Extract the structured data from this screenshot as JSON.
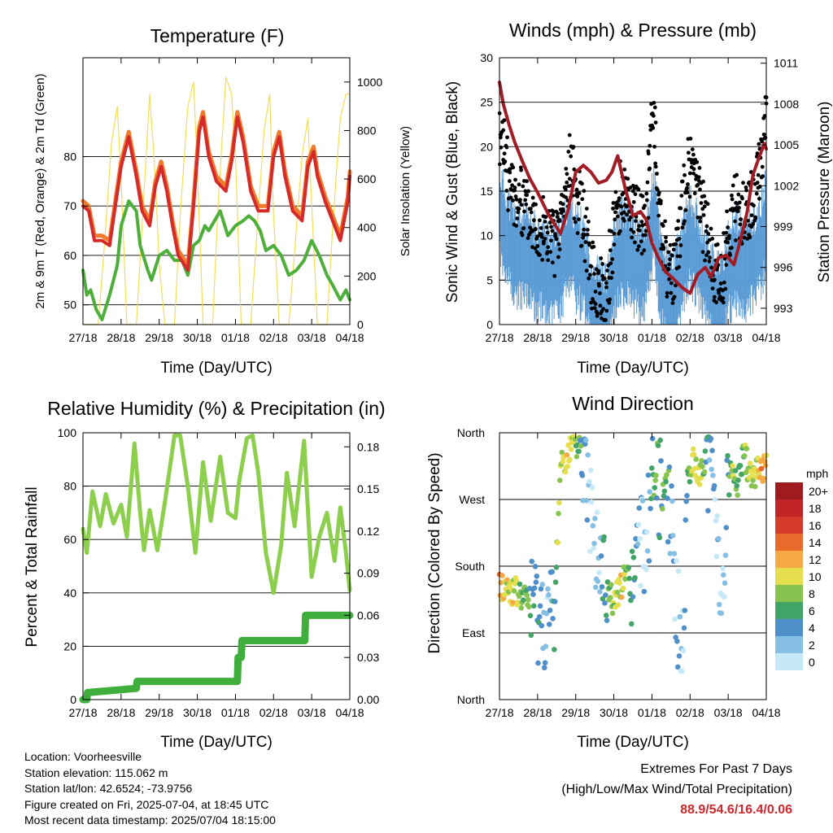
{
  "colors": {
    "t2m": "#f07a2b",
    "t9m": "#d42a2a",
    "td": "#4daf3a",
    "solar": "#f5dc55",
    "gust": "#000000",
    "wind": "#5b9bd5",
    "pressure": "#a21c25",
    "rh": "#8ccf4d",
    "precip": "#3fae3c",
    "extremes": "#c9282d"
  },
  "x_ticks": [
    "27/18",
    "28/18",
    "29/18",
    "30/18",
    "01/18",
    "02/18",
    "03/18",
    "04/18"
  ],
  "chart_data": [
    {
      "type": "line",
      "title": "Temperature (F)",
      "xlabel": "Time (Day/UTC)",
      "ylabel": "2m & 9m T (Red, Orange) & 2m Td (Green)",
      "ylabel_right": "Solar Insolation (Yellow)",
      "ylim": [
        46,
        100
      ],
      "ylim_right": [
        0,
        1100
      ],
      "yticks": [
        50,
        60,
        70,
        80
      ],
      "yticks_right": [
        0,
        200,
        400,
        600,
        800,
        1000
      ],
      "grid": true,
      "series": [
        {
          "key": "t9m",
          "x": [
            0,
            0.15,
            0.3,
            0.5,
            0.7,
            0.85,
            1.0,
            1.2,
            1.4,
            1.55,
            1.75,
            1.9,
            2.05,
            2.2,
            2.35,
            2.5,
            2.75,
            2.9,
            3.05,
            3.15,
            3.3,
            3.5,
            3.75,
            3.9,
            4.05,
            4.2,
            4.4,
            4.6,
            4.85,
            5.0,
            5.15,
            5.3,
            5.5,
            5.75,
            5.9,
            6.05,
            6.15,
            6.35,
            6.55,
            6.75,
            6.95,
            7.0
          ],
          "y": [
            70,
            69,
            63,
            63,
            62,
            70,
            78,
            84,
            76,
            69,
            66,
            74,
            78,
            73,
            66,
            60,
            57,
            70,
            85,
            88,
            80,
            75,
            73,
            79,
            88,
            83,
            73,
            69,
            69,
            80,
            84,
            76,
            69,
            67,
            78,
            81,
            76,
            71,
            67,
            63,
            71,
            76
          ]
        },
        {
          "key": "t2m",
          "x": [
            0,
            0.15,
            0.3,
            0.5,
            0.7,
            0.85,
            1.0,
            1.2,
            1.4,
            1.55,
            1.75,
            1.9,
            2.05,
            2.2,
            2.35,
            2.5,
            2.75,
            2.9,
            3.05,
            3.15,
            3.3,
            3.5,
            3.75,
            3.9,
            4.05,
            4.2,
            4.4,
            4.6,
            4.85,
            5.0,
            5.15,
            5.3,
            5.5,
            5.75,
            5.9,
            6.05,
            6.15,
            6.35,
            6.55,
            6.75,
            6.95,
            7.0
          ],
          "y": [
            71,
            70,
            64,
            64,
            63,
            71,
            79,
            85,
            77,
            70,
            67,
            75,
            79,
            74,
            67,
            61,
            58,
            71,
            86,
            89,
            81,
            76,
            74,
            80,
            89,
            84,
            74,
            70,
            70,
            81,
            85,
            77,
            70,
            68,
            79,
            82,
            77,
            72,
            68,
            64,
            72,
            77
          ]
        },
        {
          "key": "td",
          "x": [
            0,
            0.1,
            0.2,
            0.35,
            0.5,
            0.7,
            0.9,
            1.0,
            1.2,
            1.4,
            1.5,
            1.7,
            1.8,
            2.0,
            2.2,
            2.4,
            2.6,
            2.75,
            2.9,
            3.05,
            3.2,
            3.3,
            3.45,
            3.6,
            3.8,
            4.0,
            4.2,
            4.35,
            4.5,
            4.65,
            4.8,
            5.0,
            5.2,
            5.4,
            5.6,
            5.8,
            6.0,
            6.2,
            6.4,
            6.55,
            6.75,
            6.9,
            7.0
          ],
          "y": [
            57,
            52,
            53,
            49,
            47,
            52,
            58,
            66,
            71,
            69,
            62,
            57,
            55,
            60,
            61,
            59,
            59,
            56,
            62,
            63,
            66,
            65,
            67,
            69,
            64,
            66,
            67,
            68,
            67,
            65,
            61,
            62,
            60,
            56,
            57,
            59,
            63,
            60,
            56,
            54,
            51,
            53,
            51
          ]
        },
        {
          "key": "solar",
          "axis": "right",
          "x": [
            0,
            0.4,
            0.55,
            0.75,
            0.9,
            1.0,
            1.15,
            1.35,
            1.4,
            1.55,
            1.75,
            1.9,
            2.0,
            2.15,
            2.35,
            2.4,
            2.55,
            2.75,
            2.9,
            3.0,
            3.15,
            3.35,
            3.4,
            3.55,
            3.75,
            3.9,
            4.0,
            4.15,
            4.35,
            4.4,
            4.55,
            4.75,
            4.9,
            5.0,
            5.15,
            5.35,
            5.4,
            5.55,
            5.75,
            5.9,
            6.0,
            6.15,
            6.35,
            6.4,
            6.55,
            6.75,
            6.9,
            7.0
          ],
          "y": [
            0,
            0,
            300,
            750,
            900,
            600,
            0,
            0,
            0,
            400,
            950,
            600,
            250,
            0,
            0,
            0,
            450,
            900,
            1000,
            650,
            0,
            0,
            0,
            500,
            1020,
            950,
            700,
            0,
            0,
            0,
            350,
            800,
            950,
            450,
            0,
            0,
            0,
            300,
            700,
            850,
            500,
            0,
            0,
            0,
            400,
            850,
            950,
            950
          ]
        }
      ]
    },
    {
      "type": "scatter",
      "title": "Winds (mph) & Pressure (mb)",
      "xlabel": "Time (Day/UTC)",
      "ylabel": "Sonic Wind & Gust (Blue, Black)",
      "ylabel_right": "Station Pressure (Maroon)",
      "ylim": [
        0,
        30
      ],
      "ylim_right": [
        991.8,
        1011.4
      ],
      "yticks": [
        0,
        5,
        10,
        15,
        20,
        25,
        30
      ],
      "yticks_right": [
        993,
        996,
        999,
        1002,
        1005,
        1008,
        1011
      ],
      "grid": true,
      "series": [
        {
          "key": "gust",
          "x": [
            0,
            0.15,
            0.3,
            0.5,
            0.7,
            0.9,
            1.1,
            1.3,
            1.5,
            1.7,
            1.85,
            2.0,
            2.2,
            2.4,
            2.6,
            2.8,
            3.0,
            3.2,
            3.4,
            3.6,
            3.8,
            3.95,
            4.05,
            4.2,
            4.4,
            4.6,
            4.8,
            5.0,
            5.2,
            5.4,
            5.6,
            5.8,
            6.0,
            6.15,
            6.3,
            6.5,
            6.7,
            6.85,
            6.95,
            7.0
          ],
          "y": [
            21,
            19,
            15,
            14,
            13,
            12,
            11,
            10,
            9,
            14,
            18,
            15,
            12,
            6,
            4,
            3,
            11,
            15,
            14,
            12,
            10,
            19,
            24,
            12,
            6,
            5,
            14,
            18,
            15,
            11,
            7,
            4,
            10,
            14,
            12,
            13,
            15,
            17,
            22,
            23
          ]
        },
        {
          "key": "wind",
          "x": [
            0,
            0.15,
            0.3,
            0.5,
            0.7,
            0.9,
            1.1,
            1.3,
            1.5,
            1.7,
            1.85,
            2.0,
            2.2,
            2.4,
            2.6,
            2.8,
            3.0,
            3.2,
            3.4,
            3.6,
            3.8,
            3.95,
            4.05,
            4.2,
            4.4,
            4.6,
            4.8,
            5.0,
            5.2,
            5.4,
            5.6,
            5.8,
            6.0,
            6.15,
            6.3,
            6.5,
            6.7,
            6.85,
            6.95,
            7.0
          ],
          "y": [
            13,
            11,
            9,
            8,
            8,
            7,
            7,
            6,
            6,
            8,
            10,
            8,
            7,
            3,
            2,
            1,
            6,
            9,
            8,
            7,
            6,
            10,
            13,
            7,
            3,
            3,
            7,
            10,
            8,
            6,
            4,
            2,
            6,
            8,
            7,
            7,
            8,
            9,
            11,
            12
          ]
        },
        {
          "key": "pressure",
          "type": "line",
          "axis": "right",
          "x": [
            0,
            0.1,
            0.25,
            0.4,
            0.6,
            0.8,
            1.0,
            1.3,
            1.6,
            1.8,
            2.0,
            2.2,
            2.4,
            2.6,
            2.8,
            2.95,
            3.1,
            3.3,
            3.5,
            3.7,
            3.85,
            4.0,
            4.15,
            4.35,
            4.55,
            4.8,
            5.0,
            5.2,
            5.4,
            5.55,
            5.75,
            5.95,
            6.15,
            6.35,
            6.5,
            6.65,
            6.8,
            6.95,
            7.0
          ],
          "y": [
            1009.6,
            1008,
            1006.5,
            1005.2,
            1003.8,
            1002.5,
            1001.5,
            999.8,
            998.5,
            1000.2,
            1003,
            1003.5,
            1003,
            1002.2,
            1002.4,
            1003,
            1004.2,
            1001.8,
            999.8,
            1000.1,
            999.5,
            997.8,
            996.8,
            995.7,
            995.2,
            994.5,
            994.1,
            995.5,
            996,
            995.3,
            996.7,
            996.9,
            996.2,
            998.3,
            1000.1,
            1002.8,
            1004,
            1005.1,
            1004.7
          ]
        }
      ]
    },
    {
      "type": "line",
      "title": "Relative Humidity (%) & Precipitation (in)",
      "xlabel": "Time (Day/UTC)",
      "ylabel": "Percent & Total Rainfall",
      "ylim": [
        0,
        100
      ],
      "ylim_right": [
        0,
        0.19
      ],
      "yticks": [
        0,
        20,
        40,
        60,
        80,
        100
      ],
      "yticks_right": [
        0.0,
        0.03,
        0.06,
        0.09,
        0.12,
        0.15,
        0.18
      ],
      "grid": true,
      "series": [
        {
          "key": "rh",
          "x": [
            0,
            0.1,
            0.25,
            0.45,
            0.6,
            0.8,
            1.0,
            1.15,
            1.35,
            1.5,
            1.6,
            1.75,
            1.95,
            2.15,
            2.4,
            2.55,
            2.75,
            2.95,
            3.15,
            3.35,
            3.6,
            3.8,
            4.0,
            4.1,
            4.3,
            4.45,
            4.6,
            4.8,
            5.0,
            5.2,
            5.35,
            5.55,
            5.8,
            6.0,
            6.2,
            6.4,
            6.6,
            6.75,
            6.9,
            7.0
          ],
          "y": [
            64,
            55,
            78,
            65,
            77,
            66,
            73,
            61,
            96,
            70,
            56,
            71,
            56,
            74,
            99,
            99,
            80,
            55,
            89,
            67,
            91,
            70,
            68,
            82,
            98,
            99,
            85,
            55,
            40,
            58,
            85,
            65,
            97,
            46,
            61,
            70,
            52,
            72,
            55,
            41
          ]
        },
        {
          "key": "precip",
          "axis": "right",
          "x": [
            0,
            0.1,
            0.12,
            1.4,
            1.42,
            4.05,
            4.07,
            4.15,
            4.17,
            5.82,
            5.84,
            7.0
          ],
          "y": [
            0.0,
            0.0,
            0.005,
            0.008,
            0.013,
            0.013,
            0.03,
            0.03,
            0.042,
            0.042,
            0.06,
            0.06
          ]
        }
      ]
    },
    {
      "type": "scatter",
      "title": "Wind Direction",
      "xlabel": "Time (Day/UTC)",
      "ylabel": "Direction (Colored By Speed)",
      "yticks": [
        "North",
        "East",
        "South",
        "West",
        "North"
      ],
      "ylim": [
        0,
        360
      ],
      "legend_title": "mph",
      "legend_labels": [
        "0",
        "2",
        "4",
        "6",
        "8",
        "10",
        "12",
        "14",
        "16",
        "18",
        "20+"
      ],
      "legend_colors": [
        "#c6e9f7",
        "#86bfe4",
        "#4f8fca",
        "#43a467",
        "#86c44f",
        "#e5df4f",
        "#f5a944",
        "#ea6a2b",
        "#d53b2a",
        "#c12528",
        "#9e1b1f"
      ],
      "legend_placement": "right",
      "grid": true,
      "series": [
        {
          "key": "dir",
          "x": [
            0,
            0.1,
            0.25,
            0.4,
            0.55,
            0.7,
            0.85,
            1.0,
            1.2,
            1.3,
            1.45,
            1.6,
            1.8,
            1.95,
            2.05,
            2.2,
            2.35,
            2.45,
            2.6,
            2.75,
            2.85,
            3.0,
            3.1,
            3.2,
            3.35,
            3.5,
            3.7,
            3.85,
            4.0,
            4.1,
            4.2,
            4.35,
            4.5,
            4.65,
            4.8,
            4.95,
            5.1,
            5.25,
            5.4,
            5.55,
            5.7,
            5.85,
            6.0,
            6.1,
            6.25,
            6.4,
            6.55,
            6.7,
            6.85,
            7.0
          ],
          "y": [
            155,
            150,
            150,
            145,
            140,
            135,
            130,
            120,
            110,
            105,
            120,
            320,
            330,
            345,
            340,
            320,
            275,
            245,
            180,
            160,
            145,
            130,
            145,
            155,
            165,
            150,
            210,
            200,
            290,
            295,
            280,
            300,
            260,
            120,
            70,
            310,
            320,
            300,
            330,
            290,
            240,
            130,
            300,
            310,
            290,
            330,
            310,
            305,
            310,
            320
          ],
          "speed": [
            12,
            11,
            9,
            10,
            8,
            7,
            5,
            4,
            3,
            2,
            6,
            9,
            10,
            8,
            7,
            4,
            2,
            1,
            2,
            5,
            6,
            8,
            9,
            10,
            7,
            5,
            1,
            2,
            5,
            7,
            4,
            8,
            3,
            2,
            1,
            6,
            9,
            10,
            6,
            3,
            2,
            1,
            5,
            8,
            6,
            7,
            10,
            9,
            12,
            11
          ]
        }
      ]
    }
  ],
  "info": {
    "location": "Location: Voorheesville",
    "elevation": "Station elevation: 115.062 m",
    "latlon": "Station lat/lon: 42.6524; -73.9756",
    "created": "Figure created on Fri, 2025-07-04, at 18:45 UTC",
    "recent": "Most recent data timestamp: 2025/07/04 18:15:00"
  },
  "extremes": {
    "title": "Extremes For Past 7 Days",
    "subtitle": "(High/Low/Max Wind/Total Precipitation)",
    "values": "88.9/54.6/16.4/0.06"
  }
}
